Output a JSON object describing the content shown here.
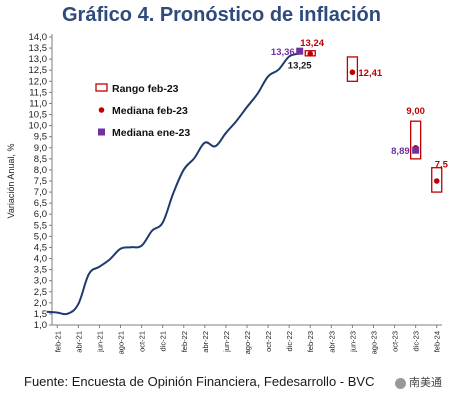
{
  "title": "Gráfico 4. Pronóstico de inflación",
  "source": "Fuente: Encuesta de Opinión Financiera, Fedesarrollo - BVC",
  "watermark": "南美通",
  "colors": {
    "line": "#1f3a6e",
    "range": "#c00000",
    "median_feb": "#c00000",
    "median_ene": "#7030a0",
    "title": "#2f4b7c"
  },
  "chart_data": {
    "type": "line",
    "title": "Gráfico 4. Pronóstico de inflación",
    "ylabel": "Variación Anual, %",
    "xlabel": "",
    "ylim": [
      1.0,
      14.0
    ],
    "ytick_step": 0.5,
    "yticks": [
      "1,0",
      "1,5",
      "2,0",
      "2,5",
      "3,0",
      "3,5",
      "4,0",
      "4,5",
      "5,0",
      "5,5",
      "6,0",
      "6,5",
      "7,0",
      "7,5",
      "8,0",
      "8,5",
      "9,0",
      "9,5",
      "10,0",
      "10,5",
      "11,0",
      "11,5",
      "12,0",
      "12,5",
      "13,0",
      "13,5",
      "14,0"
    ],
    "xticks": [
      "feb-21",
      "abr-21",
      "jun-21",
      "ago-21",
      "oct-21",
      "dic-21",
      "feb-22",
      "abr-22",
      "jun-22",
      "ago-22",
      "oct-22",
      "dic-22",
      "feb-23",
      "abr-23",
      "jun-23",
      "ago-23",
      "oct-23",
      "dic-23",
      "feb-24"
    ],
    "grid": false,
    "legend_position": "left",
    "legend": [
      {
        "label": "Rango feb-23",
        "kind": "range"
      },
      {
        "label": "Mediana feb-23",
        "kind": "median_feb"
      },
      {
        "label": "Mediana ene-23",
        "kind": "median_ene"
      }
    ],
    "series": [
      {
        "x": [
          "ene-21",
          "feb-21",
          "mar-21",
          "abr-21",
          "may-21",
          "jun-21",
          "jul-21",
          "ago-21",
          "sep-21",
          "oct-21",
          "nov-21",
          "dic-21",
          "ene-22",
          "feb-22",
          "mar-22",
          "abr-22",
          "may-22",
          "jun-22",
          "jul-22",
          "ago-22",
          "sep-22",
          "oct-22",
          "nov-22",
          "dic-22",
          "ene-23"
        ],
        "values": [
          1.6,
          1.56,
          1.51,
          1.95,
          3.3,
          3.63,
          3.97,
          4.44,
          4.51,
          4.58,
          5.26,
          5.62,
          6.94,
          8.01,
          8.53,
          9.23,
          9.07,
          9.67,
          10.21,
          10.84,
          11.44,
          12.22,
          12.53,
          13.12,
          13.25
        ]
      }
    ],
    "ranges": [
      {
        "x": "feb-23",
        "low": 13.15,
        "high": 13.38
      },
      {
        "x": "jun-23",
        "low": 12.0,
        "high": 13.1
      },
      {
        "x": "dic-23",
        "low": 8.5,
        "high": 10.2
      },
      {
        "x": "feb-24",
        "low": 7.0,
        "high": 8.1
      }
    ],
    "median_feb23": [
      {
        "x": "feb-23",
        "value": 13.24
      },
      {
        "x": "jun-23",
        "value": 12.41
      },
      {
        "x": "dic-23",
        "value": 9.0
      },
      {
        "x": "feb-24",
        "value": 7.5
      }
    ],
    "median_ene23": [
      {
        "x": "ene-23",
        "value": 13.36
      },
      {
        "x": "dic-23",
        "value": 8.89
      }
    ],
    "annotations": {
      "last_obs": "13,25",
      "median_ene_jan": "13,36",
      "median_feb_feb": "13,24",
      "median_feb_jun": "12,41",
      "median_feb_dec": "9,00",
      "median_ene_dec": "8,89",
      "median_feb_feb24": "7,5"
    }
  }
}
